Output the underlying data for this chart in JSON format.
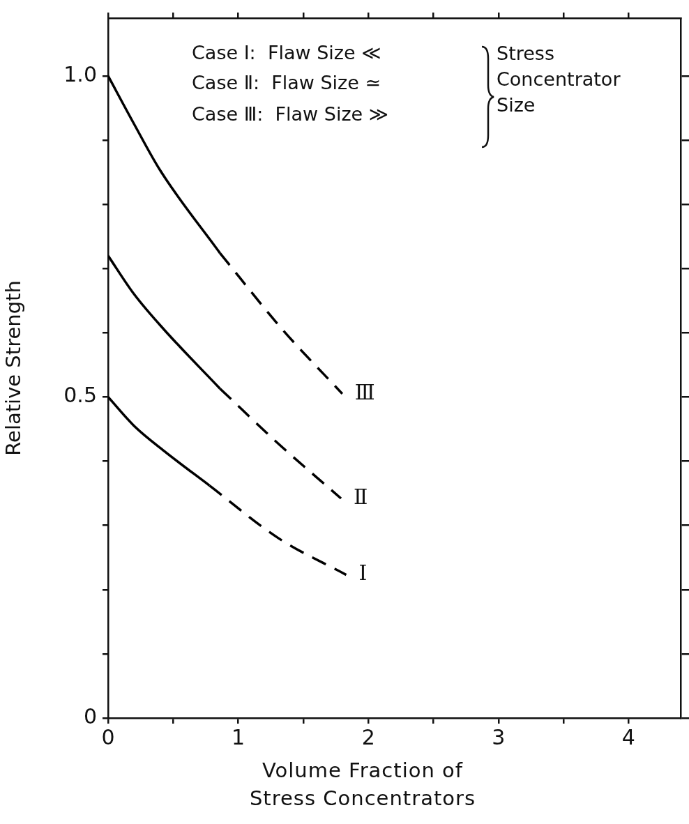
{
  "chart_data": {
    "type": "line",
    "xlabel": "Volume Fraction of Stress Concentrators",
    "ylabel": "Relative Strength",
    "xlim": [
      0,
      4.4
    ],
    "ylim": [
      0,
      1.09
    ],
    "xticks": [
      0,
      {
        "value": 0.5,
        "label": null
      },
      1,
      {
        "value": 1.5,
        "label": null
      },
      2,
      {
        "value": 2.5,
        "label": null
      },
      3,
      {
        "value": 3.5,
        "label": null
      },
      4
    ],
    "yticks": [
      0,
      {
        "value": 0.1,
        "label": null
      },
      {
        "value": 0.2,
        "label": null
      },
      {
        "value": 0.3,
        "label": null
      },
      {
        "value": 0.4,
        "label": null
      },
      0.5,
      {
        "value": 0.6,
        "label": null
      },
      {
        "value": 0.7,
        "label": null
      },
      {
        "value": 0.8,
        "label": null
      },
      {
        "value": 0.9,
        "label": null
      },
      {
        "value": 1,
        "label": "1.0"
      }
    ],
    "marker": "none",
    "series": [
      {
        "color": "#000000",
        "line_style": "solid",
        "x": [
          0,
          0.2,
          0.4,
          0.86
        ],
        "values": [
          1.0,
          0.925,
          0.853,
          0.724
        ]
      },
      {
        "color": "#000000",
        "line_style": "dashed",
        "x": [
          0.86,
          1.34,
          1.8
        ],
        "values": [
          0.724,
          0.605,
          0.505
        ]
      },
      {
        "color": "#000000",
        "line_style": "solid",
        "x": [
          0,
          0.2,
          0.43,
          0.86
        ],
        "values": [
          0.72,
          0.66,
          0.605,
          0.513
        ]
      },
      {
        "color": "#000000",
        "line_style": "dashed",
        "x": [
          0.86,
          1.31,
          1.79
        ],
        "values": [
          0.513,
          0.427,
          0.342
        ]
      },
      {
        "color": "#000000",
        "line_style": "solid",
        "x": [
          0,
          0.2,
          0.43,
          0.78
        ],
        "values": [
          0.5,
          0.455,
          0.416,
          0.362
        ]
      },
      {
        "color": "#000000",
        "line_style": "dashed",
        "x": [
          0.78,
          1.31,
          1.83
        ],
        "values": [
          0.362,
          0.28,
          0.223
        ]
      }
    ],
    "annotations": [
      "Case Ⅰ:  Flaw Size ≪",
      "Case Ⅱ:  Flaw Size ≃",
      "Case Ⅲ:  Flaw Size ≫",
      "Stress Concentrator Size",
      {
        "text": "Ⅲ",
        "x": 1.8,
        "y": 0.505
      },
      {
        "text": "Ⅱ",
        "x": 1.79,
        "y": 0.342
      },
      {
        "text": "Ⅰ",
        "x": 1.83,
        "y": 0.223
      }
    ]
  }
}
